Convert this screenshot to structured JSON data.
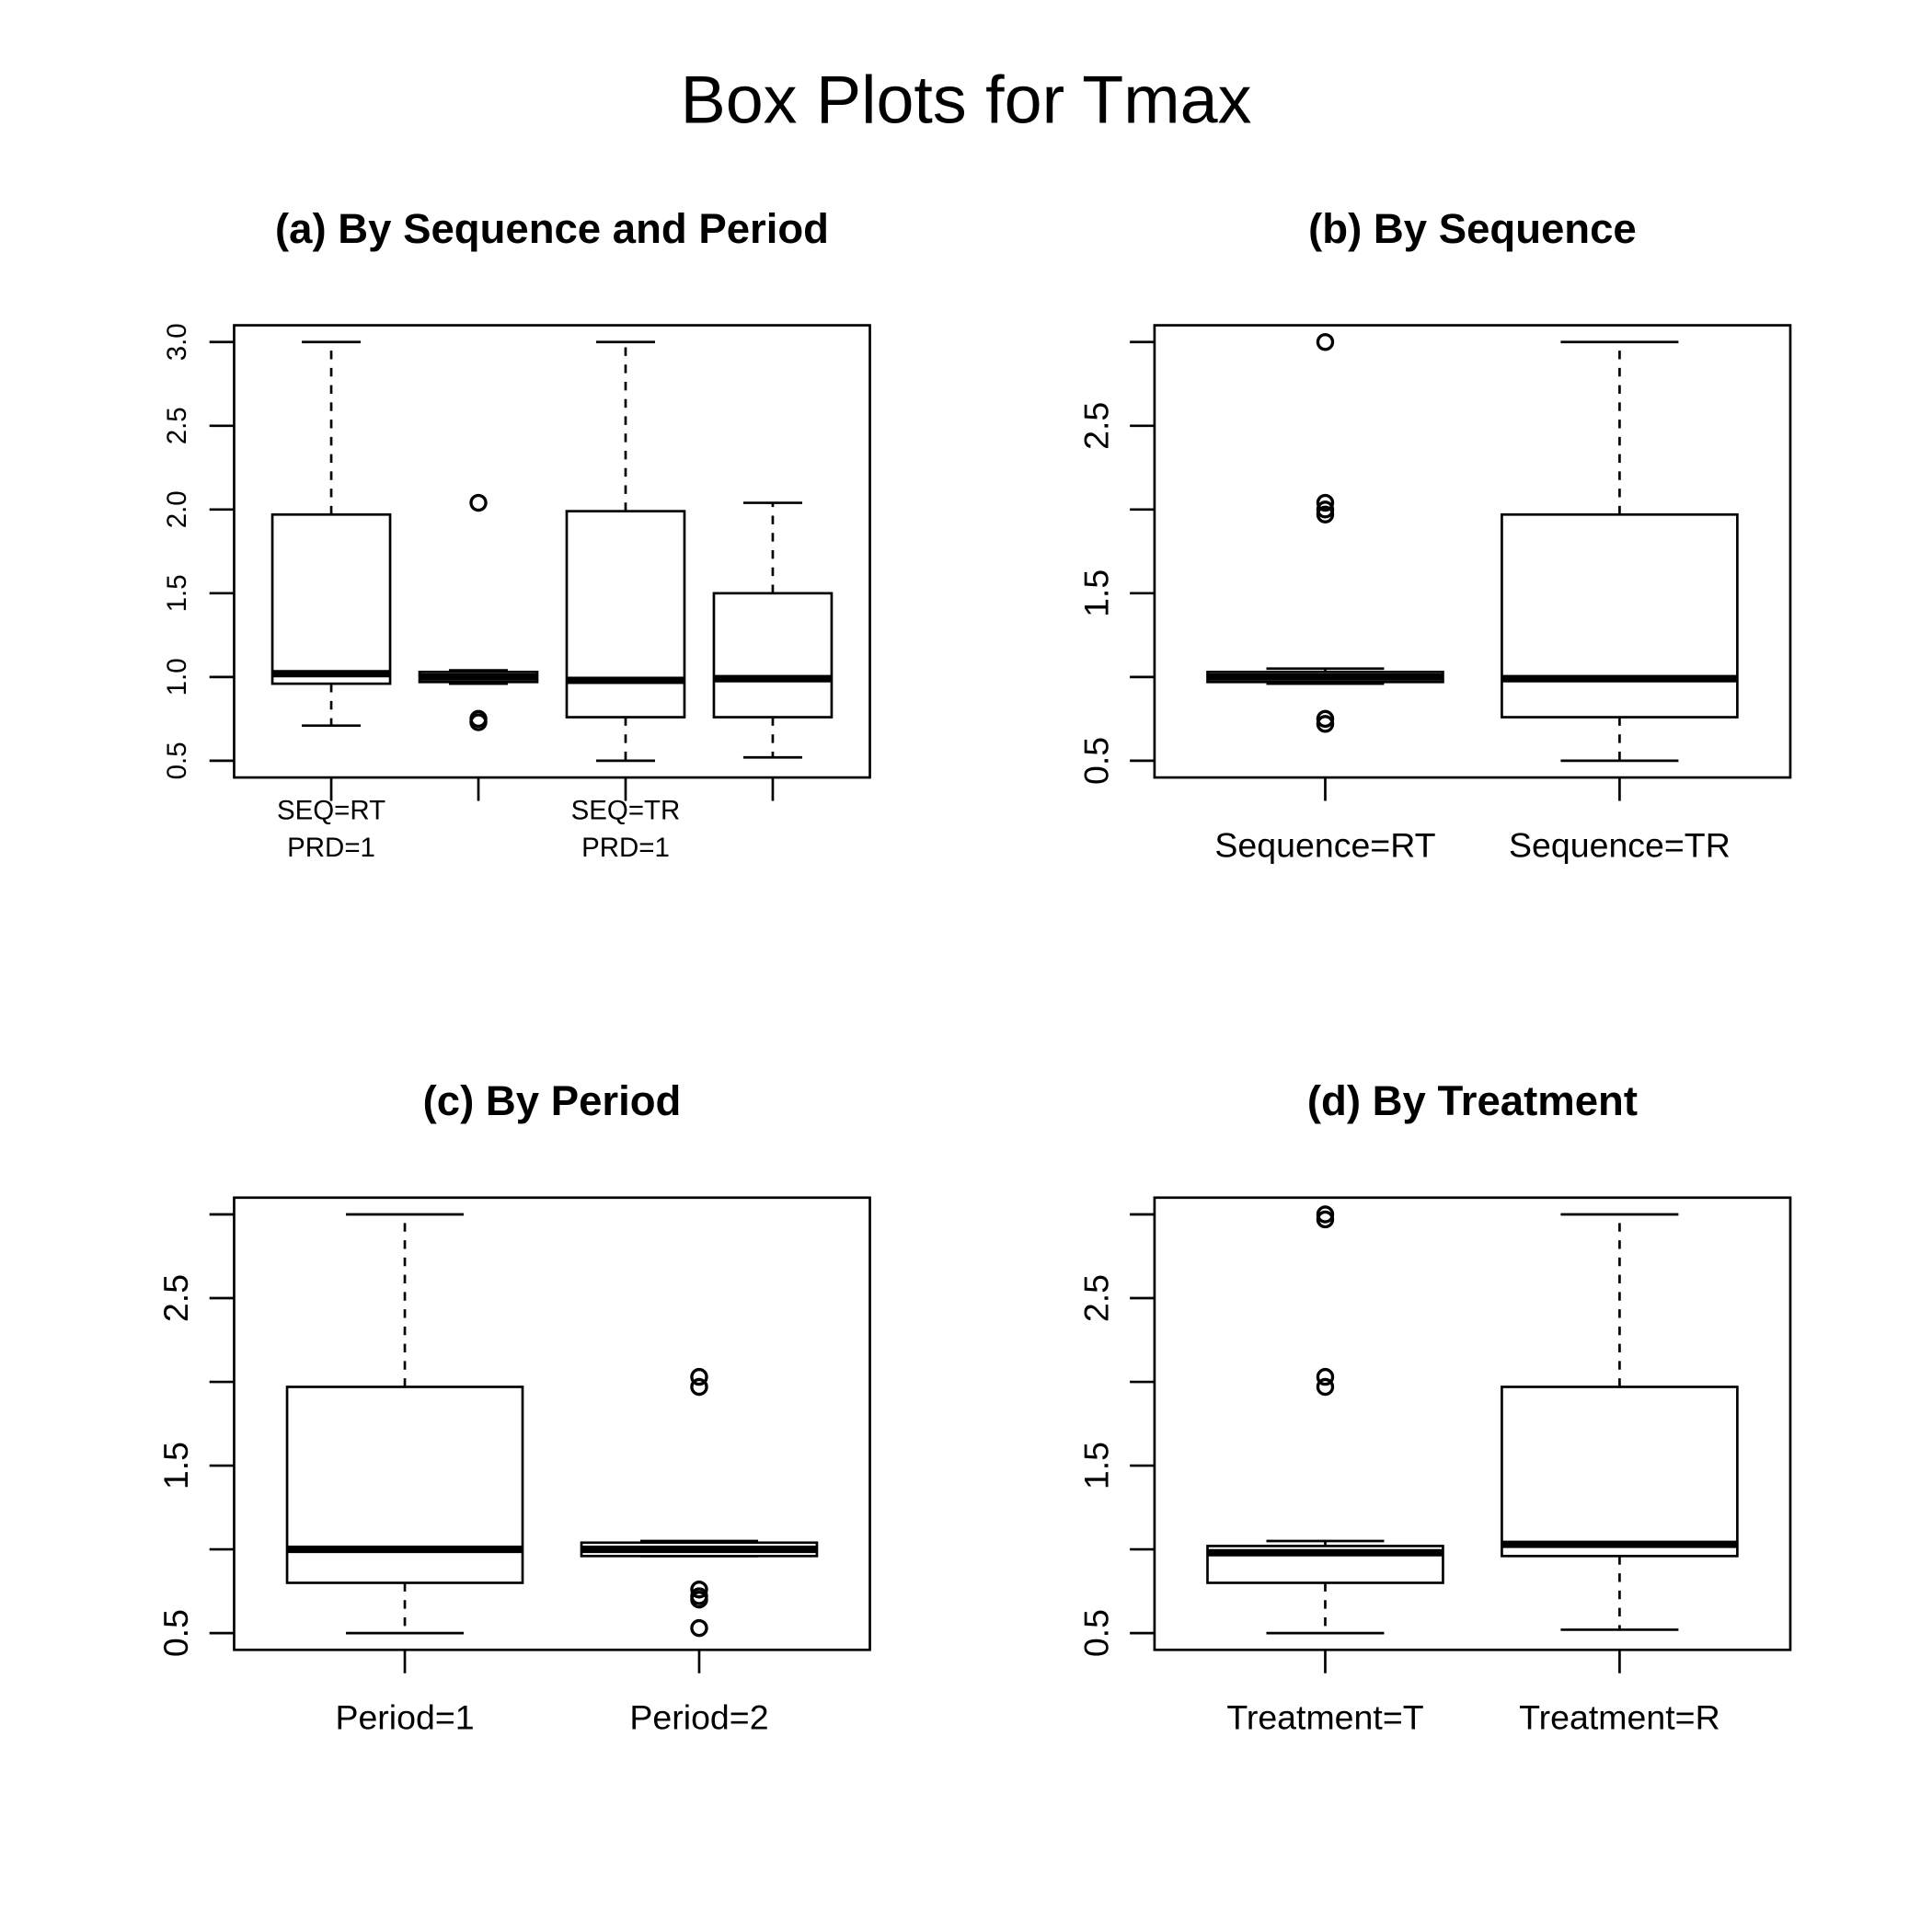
{
  "title": "Box Plots for Tmax",
  "chart_data": [
    {
      "type": "box",
      "title": "(a) By Sequence and Period",
      "categories": [
        "SEQ=RT\nPRD=1",
        null,
        "SEQ=TR\nPRD=1",
        null
      ],
      "boxes": [
        {
          "whislo": 0.71,
          "q1": 0.96,
          "med": 1.02,
          "q3": 1.97,
          "whishi": 3.0,
          "fliers": []
        },
        {
          "whislo": 0.96,
          "q1": 0.97,
          "med": 1.0,
          "q3": 1.03,
          "whishi": 1.04,
          "fliers": [
            0.73,
            0.75,
            2.04
          ]
        },
        {
          "whislo": 0.5,
          "q1": 0.76,
          "med": 0.98,
          "q3": 1.99,
          "whishi": 3.0,
          "fliers": []
        },
        {
          "whislo": 0.52,
          "q1": 0.76,
          "med": 0.99,
          "q3": 1.5,
          "whishi": 2.04,
          "fliers": []
        }
      ],
      "ylim": [
        0.4,
        3.1
      ],
      "yticks": [
        0.5,
        {
          "value": 1,
          "label": "1.0"
        },
        1.5,
        {
          "value": 2,
          "label": "2.0"
        },
        2.5,
        {
          "value": 3,
          "label": "3.0"
        }
      ]
    },
    {
      "type": "box",
      "title": "(b) By Sequence",
      "categories": [
        "Sequence=RT",
        "Sequence=TR"
      ],
      "boxes": [
        {
          "whislo": 0.96,
          "q1": 0.97,
          "med": 1.0,
          "q3": 1.03,
          "whishi": 1.05,
          "fliers": [
            0.72,
            0.75,
            1.97,
            2.0,
            2.04,
            3.0
          ]
        },
        {
          "whislo": 0.5,
          "q1": 0.76,
          "med": 0.99,
          "q3": 1.97,
          "whishi": 3.0,
          "fliers": []
        }
      ],
      "ylim": [
        0.4,
        3.1
      ],
      "yticks": [
        0.5,
        {
          "value": 1,
          "label": null
        },
        1.5,
        {
          "value": 2,
          "label": null
        },
        2.5,
        {
          "value": 3,
          "label": null
        }
      ]
    },
    {
      "type": "box",
      "title": "(c) By Period",
      "categories": [
        "Period=1",
        "Period=2"
      ],
      "boxes": [
        {
          "whislo": 0.5,
          "q1": 0.8,
          "med": 1.0,
          "q3": 1.97,
          "whishi": 3.0,
          "fliers": []
        },
        {
          "whislo": 0.96,
          "q1": 0.96,
          "med": 1.0,
          "q3": 1.04,
          "whishi": 1.05,
          "fliers": [
            0.53,
            0.7,
            0.72,
            0.76,
            1.97,
            2.03
          ]
        }
      ],
      "ylim": [
        0.4,
        3.1
      ],
      "yticks": [
        0.5,
        {
          "value": 1,
          "label": null
        },
        1.5,
        {
          "value": 2,
          "label": null
        },
        2.5,
        {
          "value": 3,
          "label": null
        }
      ]
    },
    {
      "type": "box",
      "title": "(d) By Treatment",
      "categories": [
        "Treatment=T",
        "Treatment=R"
      ],
      "boxes": [
        {
          "whislo": 0.5,
          "q1": 0.8,
          "med": 0.98,
          "q3": 1.02,
          "whishi": 1.05,
          "fliers": [
            1.97,
            2.03,
            2.97,
            3.0
          ]
        },
        {
          "whislo": 0.52,
          "q1": 0.96,
          "med": 1.03,
          "q3": 1.97,
          "whishi": 3.0,
          "fliers": []
        }
      ],
      "ylim": [
        0.4,
        3.1
      ],
      "yticks": [
        0.5,
        {
          "value": 1,
          "label": null
        },
        1.5,
        {
          "value": 2,
          "label": null
        },
        2.5,
        {
          "value": 3,
          "label": null
        }
      ]
    }
  ]
}
